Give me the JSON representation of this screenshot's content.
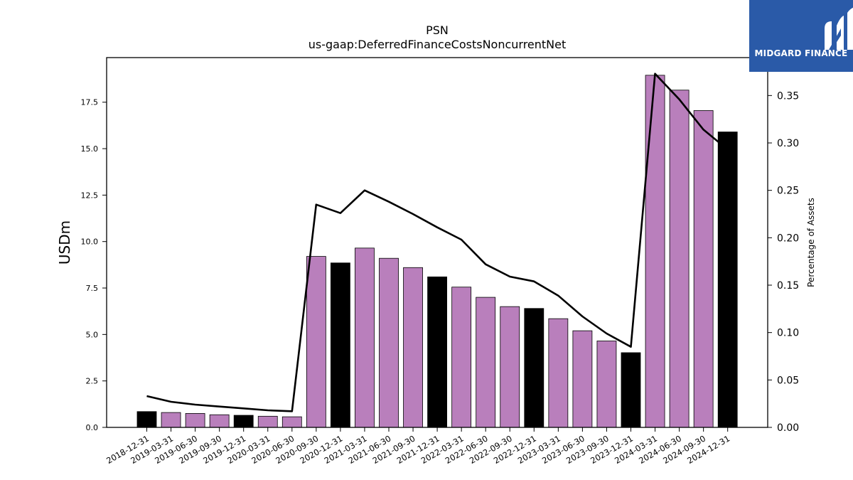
{
  "logo": {
    "text": "MIDGARD FINANCE"
  },
  "chart_data": {
    "type": "bar",
    "title": "PSN",
    "subtitle": "us-gaap:DeferredFinanceCostsNoncurrentNet",
    "ylabel": "USDm",
    "ylabel_right": "Percentage of Assets",
    "ylim": [
      0,
      19.9
    ],
    "ylim_right": [
      0,
      0.39
    ],
    "yticks": [
      "0.0",
      "2.5",
      "5.0",
      "7.5",
      "10.0",
      "12.5",
      "15.0",
      "17.5"
    ],
    "yticks_right": [
      "0.00",
      "0.05",
      "0.10",
      "0.15",
      "0.20",
      "0.25",
      "0.30",
      "0.35"
    ],
    "categories": [
      "2018-12-31",
      "2019-03-31",
      "2019-06-30",
      "2019-09-30",
      "2019-12-31",
      "2020-03-31",
      "2020-06-30",
      "2020-09-30",
      "2020-12-31",
      "2021-03-31",
      "2021-06-30",
      "2021-09-30",
      "2021-12-31",
      "2022-03-31",
      "2022-06-30",
      "2022-09-30",
      "2022-12-31",
      "2023-03-31",
      "2023-06-30",
      "2023-09-30",
      "2023-12-31",
      "2024-03-31",
      "2024-06-30",
      "2024-09-30",
      "2024-12-31"
    ],
    "series": [
      {
        "kind": "bar",
        "values": [
          0.85,
          0.8,
          0.75,
          0.68,
          0.65,
          0.6,
          0.57,
          9.2,
          8.85,
          9.65,
          9.1,
          8.6,
          8.1,
          7.55,
          7.0,
          6.5,
          6.4,
          5.85,
          5.2,
          4.65,
          4.02,
          18.95,
          18.15,
          17.05,
          15.9
        ],
        "colors": [
          "#000000",
          "#b97fbc",
          "#b97fbc",
          "#b97fbc",
          "#000000",
          "#b97fbc",
          "#b97fbc",
          "#b97fbc",
          "#000000",
          "#b97fbc",
          "#b97fbc",
          "#b97fbc",
          "#000000",
          "#b97fbc",
          "#b97fbc",
          "#b97fbc",
          "#000000",
          "#b97fbc",
          "#b97fbc",
          "#b97fbc",
          "#000000",
          "#b97fbc",
          "#b97fbc",
          "#b97fbc",
          "#000000"
        ]
      },
      {
        "kind": "line",
        "axis": "right",
        "color": "#000000",
        "values": [
          0.033,
          0.027,
          0.024,
          0.022,
          0.02,
          0.018,
          0.017,
          0.235,
          0.226,
          0.25,
          0.238,
          0.225,
          0.211,
          0.198,
          0.172,
          0.159,
          0.154,
          0.139,
          0.117,
          0.099,
          0.085,
          0.373,
          0.346,
          0.314,
          0.293
        ]
      }
    ],
    "legend": "none",
    "grid": false
  }
}
